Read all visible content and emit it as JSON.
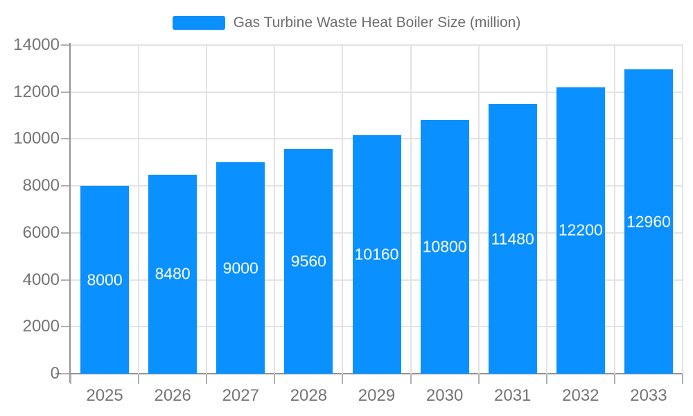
{
  "chart_data": {
    "type": "bar",
    "title": "Gas Turbine Waste Heat Boiler Size (million)",
    "categories": [
      "2025",
      "2026",
      "2027",
      "2028",
      "2029",
      "2030",
      "2031",
      "2032",
      "2033"
    ],
    "values": [
      8000,
      8480,
      9000,
      9560,
      10160,
      10800,
      11480,
      12200,
      12960
    ],
    "xlabel": "",
    "ylabel": "",
    "ylim": [
      0,
      14000
    ],
    "yticks": [
      0,
      2000,
      4000,
      6000,
      8000,
      10000,
      12000,
      14000
    ],
    "grid": true,
    "value_labels": "inside-center",
    "legend_position": "top-center",
    "colors": {
      "bar": "#0a90ff",
      "bar_value_text": "#ffffff",
      "axis_text": "#757575",
      "legend_text": "#6e6e6e",
      "grid_line": "#e3e3e3",
      "axis_line": "#949494",
      "tick_mark": "#b0b0b0"
    }
  },
  "legend": {
    "label": "Gas Turbine Waste Heat Boiler Size (million)"
  }
}
